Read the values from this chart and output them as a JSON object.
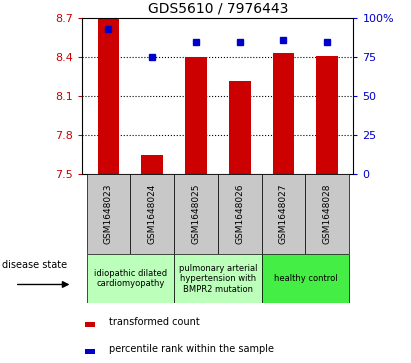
{
  "title": "GDS5610 / 7976443",
  "samples": [
    "GSM1648023",
    "GSM1648024",
    "GSM1648025",
    "GSM1648026",
    "GSM1648027",
    "GSM1648028"
  ],
  "transformed_count": [
    8.7,
    7.65,
    8.4,
    8.22,
    8.43,
    8.41
  ],
  "percentile_rank": [
    93,
    75,
    85,
    85,
    86,
    85
  ],
  "ylim_left": [
    7.5,
    8.7
  ],
  "ylim_right": [
    0,
    100
  ],
  "yticks_left": [
    7.5,
    7.8,
    8.1,
    8.4,
    8.7
  ],
  "yticks_right": [
    0,
    25,
    50,
    75,
    100
  ],
  "ytick_labels_left": [
    "7.5",
    "7.8",
    "8.1",
    "8.4",
    "8.7"
  ],
  "ytick_labels_right": [
    "0",
    "25",
    "50",
    "75",
    "100%"
  ],
  "bar_color": "#CC0000",
  "marker_color": "#0000CC",
  "bar_width": 0.5,
  "group_bounds": [
    [
      0,
      1,
      "idiopathic dilated\ncardiomyopathy",
      "#bbffbb"
    ],
    [
      2,
      3,
      "pulmonary arterial\nhypertension with\nBMPR2 mutation",
      "#bbffbb"
    ],
    [
      4,
      5,
      "healthy control",
      "#44ee44"
    ]
  ],
  "legend_red_label": "transformed count",
  "legend_blue_label": "percentile rank within the sample",
  "disease_state_label": "disease state",
  "sample_box_color": "#c8c8c8"
}
